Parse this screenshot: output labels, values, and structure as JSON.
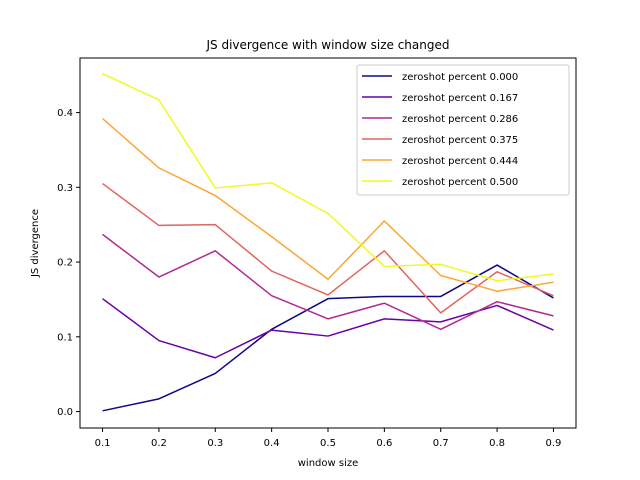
{
  "chart_data": {
    "type": "line",
    "title": "JS divergence with window size changed",
    "xlabel": "window size",
    "ylabel": "JS divergence",
    "x": [
      0.1,
      0.2,
      0.3,
      0.4,
      0.5,
      0.6,
      0.7,
      0.8,
      0.9
    ],
    "x_ticks": [
      "0.1",
      "0.2",
      "0.3",
      "0.4",
      "0.5",
      "0.6",
      "0.7",
      "0.8",
      "0.9"
    ],
    "y_ticks": [
      "0.0",
      "0.1",
      "0.2",
      "0.3",
      "0.4"
    ],
    "xlim": [
      0.06,
      0.94
    ],
    "ylim": [
      -0.022,
      0.473
    ],
    "grid": false,
    "legend_position": "top-right",
    "series": [
      {
        "name": "zeroshot percent 0.000",
        "color": "#0d0887",
        "values": [
          0.001,
          0.017,
          0.051,
          0.11,
          0.151,
          0.154,
          0.154,
          0.196,
          0.152
        ]
      },
      {
        "name": "zeroshot percent 0.167",
        "color": "#6a00a8",
        "values": [
          0.151,
          0.095,
          0.072,
          0.109,
          0.101,
          0.124,
          0.12,
          0.142,
          0.109
        ]
      },
      {
        "name": "zeroshot percent 0.286",
        "color": "#b12a90",
        "values": [
          0.237,
          0.18,
          0.215,
          0.155,
          0.124,
          0.145,
          0.11,
          0.147,
          0.128
        ]
      },
      {
        "name": "zeroshot percent 0.375",
        "color": "#e16462",
        "values": [
          0.305,
          0.249,
          0.25,
          0.188,
          0.156,
          0.215,
          0.132,
          0.187,
          0.155
        ]
      },
      {
        "name": "zeroshot percent 0.444",
        "color": "#fca636",
        "values": [
          0.392,
          0.326,
          0.289,
          0.234,
          0.177,
          0.255,
          0.182,
          0.161,
          0.173
        ]
      },
      {
        "name": "zeroshot percent 0.500",
        "color": "#f0f921",
        "values": [
          0.452,
          0.417,
          0.299,
          0.306,
          0.265,
          0.194,
          0.197,
          0.175,
          0.184
        ]
      }
    ]
  }
}
